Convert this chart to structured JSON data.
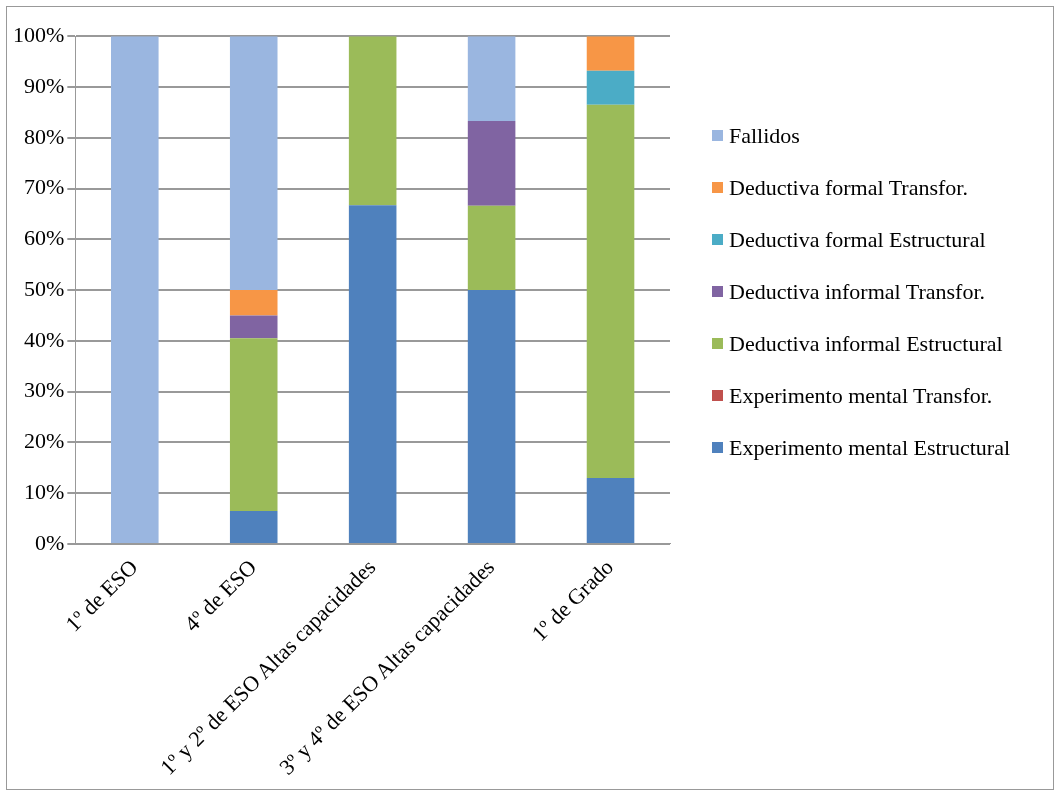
{
  "chart_data": {
    "type": "bar",
    "stacked": true,
    "categories": [
      "1º de ESO",
      "4º de ESO",
      "1º y 2º de ESO Altas capacidades",
      "3º y 4º de ESO Altas capacidades",
      "1º de Grado"
    ],
    "series": [
      {
        "name": "Experimento mental Estructural",
        "color": "#4f81bd",
        "values": [
          0,
          6.5,
          66.7,
          50,
          13
        ]
      },
      {
        "name": "Experimento mental Transfor.",
        "color": "#c0504d",
        "values": [
          0,
          0,
          0,
          0,
          0
        ]
      },
      {
        "name": "Deductiva informal Estructural",
        "color": "#9bbb59",
        "values": [
          0,
          34,
          33.3,
          16.6,
          73.5
        ]
      },
      {
        "name": "Deductiva informal Transfor.",
        "color": "#8064a2",
        "values": [
          0,
          4.5,
          0,
          16.7,
          0
        ]
      },
      {
        "name": "Deductiva formal Estructural",
        "color": "#4bacc6",
        "values": [
          0,
          0,
          0,
          0,
          6.7
        ]
      },
      {
        "name": "Deductiva formal Transfor.",
        "color": "#f79646",
        "values": [
          0,
          5,
          0,
          0,
          6.8
        ]
      },
      {
        "name": "Fallidos",
        "color": "#9ab6e0",
        "values": [
          100,
          50,
          0,
          16.7,
          0
        ]
      }
    ],
    "ylim": [
      0,
      100
    ],
    "yticks": [
      {
        "value": 0,
        "label": "0%"
      },
      {
        "value": 10,
        "label": "10%"
      },
      {
        "value": 20,
        "label": "20%"
      },
      {
        "value": 30,
        "label": "30%"
      },
      {
        "value": 40,
        "label": "40%"
      },
      {
        "value": 50,
        "label": "50%"
      },
      {
        "value": 60,
        "label": "60%"
      },
      {
        "value": 70,
        "label": "70%"
      },
      {
        "value": 80,
        "label": "80%"
      },
      {
        "value": 90,
        "label": "90%"
      },
      {
        "value": 100,
        "label": "100%"
      }
    ],
    "grid": "y",
    "legend": "right"
  }
}
